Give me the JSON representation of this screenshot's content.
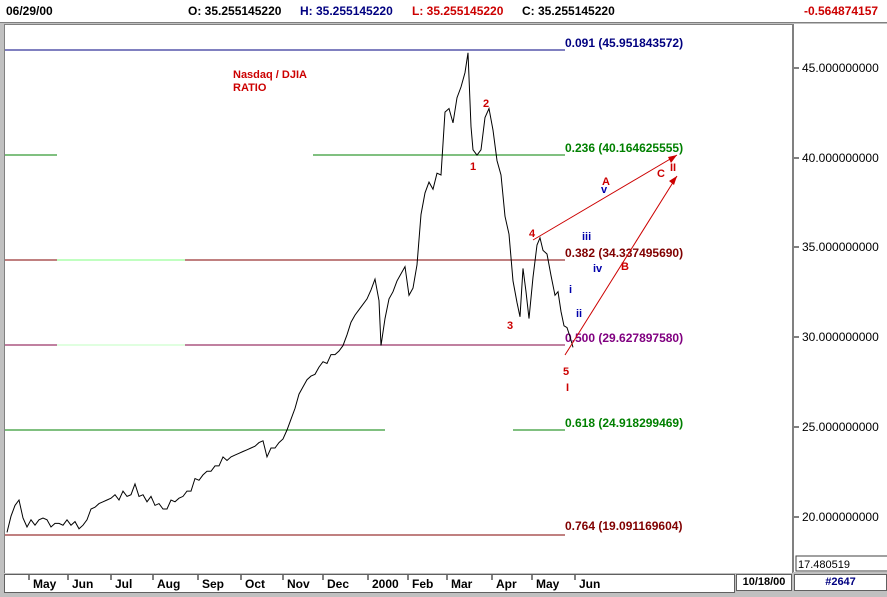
{
  "header": {
    "date": "06/29/00",
    "open": "O: 35.255145220",
    "high": "H: 35.255145220",
    "low": "L: 35.255145220",
    "close": "C: 35.255145220",
    "change": "-0.564874157"
  },
  "footer": {
    "date_box": "10/18/00",
    "chart_number": "#2647"
  },
  "colors": {
    "up_blue": "#000080",
    "red": "#cc0000",
    "green": "#008000",
    "maroon": "#800000",
    "purple": "#800080"
  },
  "chart_data": {
    "type": "line",
    "title": "Nasdaq / DJIA RATIO",
    "title_lines": [
      "Nasdaq / DJIA",
      "RATIO"
    ],
    "x_ticks": [
      "May",
      "Jun",
      "Jul",
      "Aug",
      "Sep",
      "Oct",
      "Nov",
      "Dec",
      "2000",
      "Feb",
      "Mar",
      "Apr",
      "May",
      "Jun"
    ],
    "y_ticks": [
      "45.000000000",
      "40.000000000",
      "35.000000000",
      "30.000000000",
      "25.000000000",
      "20.000000000"
    ],
    "y_ticks_values": [
      45,
      40,
      35,
      30,
      25,
      20
    ],
    "y_last_label": "17.480519",
    "ylim": [
      17.5,
      47.5
    ],
    "x_domain": [
      0,
      555
    ],
    "series": [
      {
        "points": [
          [
            0,
            19.2
          ],
          [
            4,
            20.1
          ],
          [
            8,
            20.7
          ],
          [
            12,
            21.0
          ],
          [
            16,
            20.0
          ],
          [
            20,
            19.5
          ],
          [
            24,
            19.9
          ],
          [
            28,
            19.6
          ],
          [
            32,
            19.9
          ],
          [
            36,
            20.0
          ],
          [
            40,
            19.9
          ],
          [
            44,
            19.5
          ],
          [
            48,
            19.7
          ],
          [
            52,
            19.7
          ],
          [
            56,
            19.6
          ],
          [
            60,
            19.9
          ],
          [
            64,
            19.6
          ],
          [
            68,
            19.8
          ],
          [
            72,
            19.4
          ],
          [
            76,
            19.6
          ],
          [
            80,
            19.9
          ],
          [
            84,
            20.5
          ],
          [
            88,
            20.6
          ],
          [
            92,
            20.8
          ],
          [
            96,
            20.9
          ],
          [
            100,
            21.0
          ],
          [
            104,
            21.1
          ],
          [
            108,
            21.3
          ],
          [
            112,
            21.0
          ],
          [
            116,
            21.5
          ],
          [
            120,
            21.2
          ],
          [
            124,
            21.3
          ],
          [
            128,
            21.9
          ],
          [
            132,
            21.2
          ],
          [
            136,
            21.3
          ],
          [
            140,
            20.9
          ],
          [
            144,
            21.2
          ],
          [
            148,
            20.7
          ],
          [
            152,
            20.8
          ],
          [
            156,
            20.5
          ],
          [
            160,
            20.5
          ],
          [
            164,
            21.0
          ],
          [
            168,
            20.9
          ],
          [
            172,
            21.1
          ],
          [
            176,
            21.2
          ],
          [
            180,
            21.5
          ],
          [
            184,
            21.5
          ],
          [
            188,
            22.2
          ],
          [
            192,
            22.1
          ],
          [
            196,
            22.4
          ],
          [
            200,
            22.6
          ],
          [
            204,
            22.6
          ],
          [
            208,
            22.9
          ],
          [
            212,
            22.9
          ],
          [
            216,
            23.4
          ],
          [
            220,
            23.2
          ],
          [
            224,
            23.4
          ],
          [
            228,
            23.5
          ],
          [
            232,
            23.6
          ],
          [
            236,
            23.7
          ],
          [
            240,
            23.8
          ],
          [
            244,
            23.9
          ],
          [
            248,
            24.0
          ],
          [
            252,
            24.2
          ],
          [
            256,
            24.3
          ],
          [
            260,
            23.4
          ],
          [
            264,
            23.9
          ],
          [
            268,
            23.9
          ],
          [
            272,
            24.2
          ],
          [
            276,
            24.4
          ],
          [
            280,
            24.9
          ],
          [
            284,
            25.5
          ],
          [
            288,
            26.1
          ],
          [
            292,
            26.9
          ],
          [
            296,
            27.3
          ],
          [
            300,
            27.7
          ],
          [
            304,
            27.9
          ],
          [
            308,
            28.0
          ],
          [
            312,
            28.4
          ],
          [
            316,
            28.7
          ],
          [
            320,
            28.6
          ],
          [
            324,
            29.1
          ],
          [
            328,
            29.1
          ],
          [
            332,
            29.3
          ],
          [
            336,
            29.6
          ],
          [
            340,
            30.2
          ],
          [
            344,
            30.9
          ],
          [
            348,
            31.3
          ],
          [
            352,
            31.6
          ],
          [
            356,
            31.9
          ],
          [
            360,
            32.2
          ],
          [
            364,
            32.7
          ],
          [
            368,
            33.3
          ],
          [
            372,
            32.1
          ],
          [
            374,
            29.6
          ],
          [
            378,
            31.1
          ],
          [
            382,
            32.2
          ],
          [
            386,
            32.6
          ],
          [
            390,
            33.2
          ],
          [
            394,
            33.6
          ],
          [
            398,
            34.0
          ],
          [
            402,
            32.4
          ],
          [
            406,
            32.8
          ],
          [
            410,
            34.1
          ],
          [
            414,
            36.9
          ],
          [
            418,
            38.1
          ],
          [
            422,
            38.7
          ],
          [
            426,
            38.3
          ],
          [
            430,
            39.2
          ],
          [
            434,
            39.1
          ],
          [
            438,
            42.6
          ],
          [
            442,
            42.8
          ],
          [
            446,
            42.0
          ],
          [
            450,
            43.4
          ],
          [
            454,
            44.0
          ],
          [
            458,
            44.8
          ],
          [
            461,
            45.9
          ],
          [
            464,
            41.8
          ],
          [
            466,
            40.5
          ],
          [
            470,
            40.2
          ],
          [
            474,
            40.5
          ],
          [
            478,
            42.3
          ],
          [
            482,
            42.8
          ],
          [
            486,
            41.6
          ],
          [
            490,
            39.9
          ],
          [
            494,
            39.1
          ],
          [
            498,
            36.8
          ],
          [
            502,
            35.8
          ],
          [
            506,
            33.2
          ],
          [
            510,
            32.0
          ],
          [
            513,
            31.2
          ],
          [
            516,
            33.9
          ],
          [
            519,
            32.6
          ],
          [
            522,
            31.1
          ],
          [
            526,
            33.4
          ],
          [
            530,
            35.2
          ],
          [
            533,
            35.6
          ],
          [
            536,
            34.9
          ],
          [
            540,
            34.7
          ],
          [
            544,
            33.5
          ],
          [
            548,
            32.4
          ],
          [
            551,
            32.6
          ],
          [
            554,
            31.5
          ],
          [
            557,
            30.7
          ],
          [
            560,
            30.6
          ],
          [
            563,
            30.1
          ],
          [
            566,
            29.5
          ]
        ]
      }
    ],
    "annotations": {
      "fib_levels": [
        {
          "label": "0.091 (45.951843572)",
          "value": 45.951843572
        },
        {
          "label": "0.236 (40.164625555)",
          "value": 40.164625555
        },
        {
          "label": "0.382 (34.337495690)",
          "value": 34.33749569
        },
        {
          "label": "0.500 (29.627897580)",
          "value": 29.62789758
        },
        {
          "label": "0.618 (24.918299469)",
          "value": 24.918299469
        },
        {
          "label": "0.764 (19.091169604)",
          "value": 19.091169604
        }
      ],
      "wave_labels": [
        "1",
        "2",
        "3",
        "4",
        "5",
        "I",
        "A",
        "B",
        "C",
        "II",
        "i",
        "ii",
        "iii",
        "iv",
        "v"
      ]
    }
  }
}
